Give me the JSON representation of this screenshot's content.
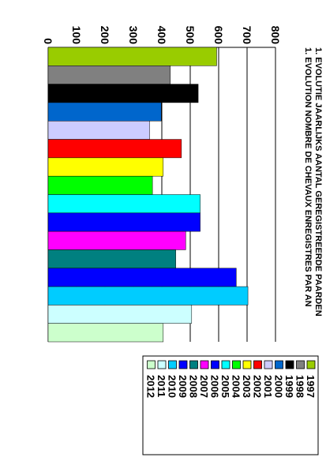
{
  "chart_data": {
    "type": "bar",
    "orientation": "rotated-90",
    "title_lines": [
      "1. EVOLUTIE JAARLIJKS AANTAL GEREGISTREERDE PAARDEN",
      "1. EVOLUTION NOMBRE DE CHEVAUX ENREGISTRES PAR AN"
    ],
    "categories": [
      "1997",
      "1998",
      "1999",
      "2000",
      "2001",
      "2002",
      "2003",
      "2004",
      "2005",
      "2006",
      "2007",
      "2008",
      "2009",
      "2010",
      "2011",
      "2012"
    ],
    "values": [
      593,
      430,
      528,
      398,
      357,
      469,
      405,
      367,
      535,
      535,
      484,
      449,
      662,
      703,
      505,
      405
    ],
    "colors": [
      "#99cc00",
      "#808080",
      "#000000",
      "#0066cc",
      "#ccccff",
      "#ff0000",
      "#ffff00",
      "#00ff00",
      "#00ffff",
      "#0000ff",
      "#ff00ff",
      "#008080",
      "#0000ff",
      "#00ccff",
      "#ccffff",
      "#ccffcc"
    ],
    "yticks": [
      0,
      100,
      200,
      300,
      400,
      500,
      600,
      700,
      800
    ],
    "ylim": [
      0,
      800
    ],
    "grid": true,
    "legend_position": "right"
  }
}
